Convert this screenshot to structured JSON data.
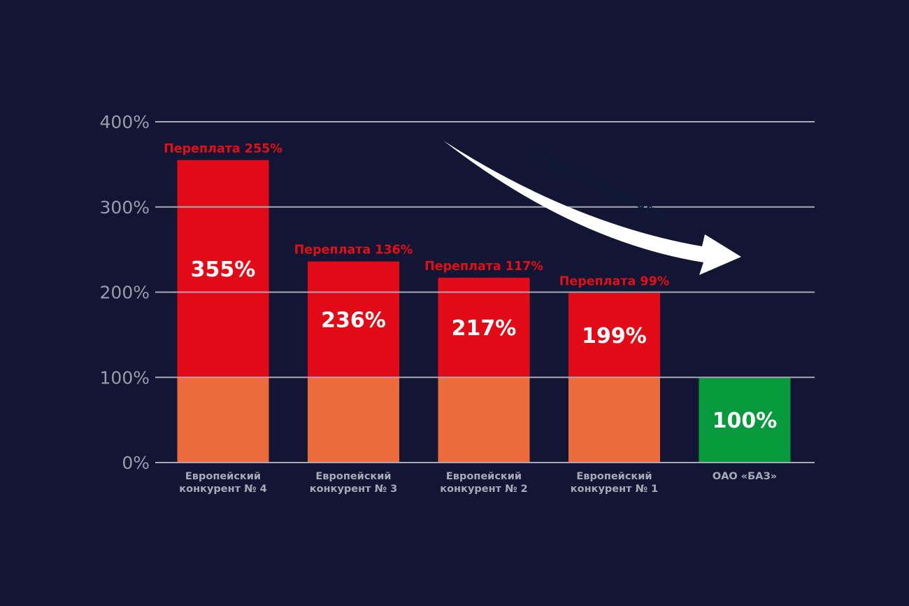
{
  "chart_data": {
    "type": "bar",
    "categories": [
      [
        "Европейский",
        "конкурент № 4"
      ],
      [
        "Европейский",
        "конкурент № 3"
      ],
      [
        "Европейский",
        "конкурент № 2"
      ],
      [
        "Европейский",
        "конкурент № 1"
      ],
      [
        "ОАО «БАЗ»"
      ]
    ],
    "values": [
      355,
      236,
      217,
      199,
      100
    ],
    "value_labels": [
      "355%",
      "236%",
      "217%",
      "199%",
      "100%"
    ],
    "overpayment_labels": [
      "Переплата 255%",
      "Переплата 136%",
      "Переплата 117%",
      "Переплата 99%",
      ""
    ],
    "base_value": 100,
    "ylim": [
      0,
      400
    ],
    "yticks": [
      0,
      100,
      200,
      300,
      400
    ],
    "ytick_labels": [
      "0%",
      "100%",
      "200%",
      "300%",
      "400%"
    ],
    "grid": true,
    "annotation": "Стоимость обработки",
    "colors": {
      "background": "#121534",
      "base": "#ec6a3c",
      "overpay": "#e20a17",
      "baz": "#079a3c",
      "overpay_label": "#e20f17",
      "grid": "#a8aab3",
      "arrow": "#ffffff"
    }
  }
}
